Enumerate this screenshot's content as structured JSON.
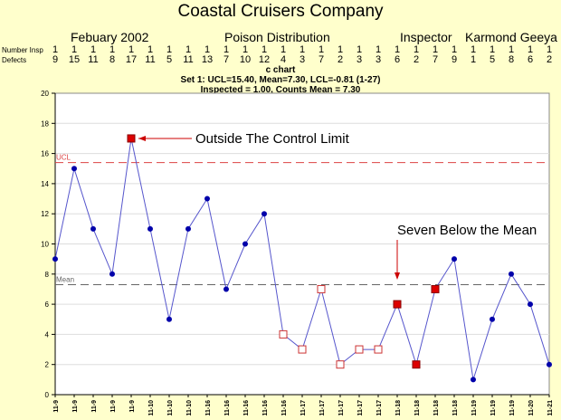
{
  "header": {
    "company": "Coastal Cruisers Company",
    "date": "Febuary 2002",
    "process": "Poison Distribution",
    "inspector_label": "Inspector",
    "inspector_name": "Karmond Geeya"
  },
  "table": {
    "row1_label": "Number Insp",
    "row2_label": "Defects",
    "number_insp": [
      "1",
      "1",
      "1",
      "1",
      "1",
      "1",
      "1",
      "1",
      "1",
      "1",
      "1",
      "1",
      "1",
      "1",
      "1",
      "1",
      "1",
      "1",
      "1",
      "1",
      "1",
      "1",
      "1",
      "1",
      "1",
      "1",
      "1"
    ],
    "defects": [
      "9",
      "15",
      "11",
      "8",
      "17",
      "11",
      "5",
      "11",
      "13",
      "7",
      "10",
      "12",
      "4",
      "3",
      "7",
      "2",
      "3",
      "3",
      "6",
      "2",
      "7",
      "9",
      "1",
      "5",
      "8",
      "6",
      "2"
    ]
  },
  "chart_header": {
    "line1": "c chart",
    "line2": "Set 1: UCL=15.40, Mean=7.30, LCL=-0.81 (1-27)",
    "line3": "Inspected = 1.00, Counts Mean = 7.30"
  },
  "chart_data": {
    "type": "line",
    "x": [
      "11-9",
      "11-9",
      "11-9",
      "11-9",
      "11-9",
      "11-10",
      "11-10",
      "11-10",
      "11-16",
      "11-16",
      "11-16",
      "11-16",
      "11-16",
      "11-17",
      "11-17",
      "11-17",
      "11-17",
      "11-17",
      "11-18",
      "11-18",
      "11-18",
      "11-18",
      "11-19",
      "11-19",
      "11-19",
      "11-20",
      "11-21"
    ],
    "values": [
      9,
      15,
      11,
      8,
      17,
      11,
      5,
      11,
      13,
      7,
      10,
      12,
      4,
      3,
      7,
      2,
      3,
      3,
      6,
      2,
      7,
      9,
      1,
      5,
      8,
      6,
      2
    ],
    "flags": [
      "normal",
      "normal",
      "normal",
      "normal",
      "outside",
      "normal",
      "normal",
      "normal",
      "normal",
      "normal",
      "normal",
      "normal",
      "run",
      "run",
      "run",
      "run",
      "run",
      "run",
      "filled",
      "filled",
      "filled",
      "normal",
      "normal",
      "normal",
      "normal",
      "normal",
      "normal"
    ],
    "ylim": [
      0,
      20
    ],
    "yticks": [
      0,
      2,
      4,
      6,
      8,
      10,
      12,
      14,
      16,
      18,
      20
    ],
    "ucl": 15.4,
    "mean": 7.3,
    "lcl": -0.81,
    "ucl_label": "UCL",
    "mean_label": "Mean",
    "annotations": [
      {
        "text": "Outside The Control Limit",
        "point_index": 4
      },
      {
        "text": "Seven Below the Mean",
        "point_index": 18
      }
    ],
    "colors": {
      "plot_bg": "#ffffff",
      "line": "#5555cc",
      "point": "#0000aa",
      "flag_filled": "#dd0000",
      "flag_open_stroke": "#cc3333",
      "ucl": "#dd4444",
      "mean": "#666666",
      "grid": "#dddddd",
      "annotation": "#cc0000"
    }
  }
}
